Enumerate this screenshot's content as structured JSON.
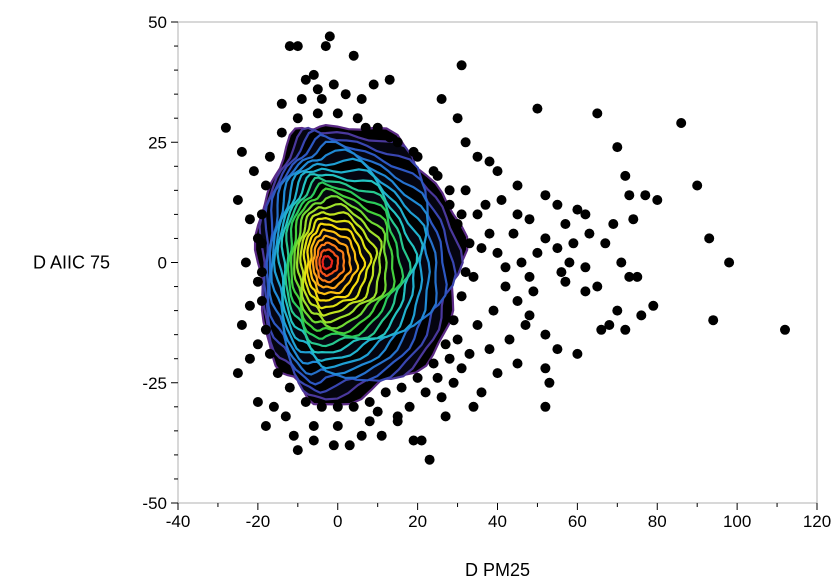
{
  "chart_data": {
    "type": "scatter",
    "title": "",
    "xlabel": "D PM25",
    "ylabel": "D AIIC 75",
    "xlim": [
      -40,
      120
    ],
    "ylim": [
      -50,
      50
    ],
    "x_ticks": [
      -40,
      -20,
      0,
      20,
      40,
      60,
      80,
      100,
      120
    ],
    "y_ticks": [
      -50,
      -25,
      0,
      25,
      50
    ],
    "x_tick_labels": [
      "-40",
      "-20",
      "0",
      "20",
      "40",
      "60",
      "80",
      "100",
      "120"
    ],
    "y_tick_labels": [
      "-50",
      "-25",
      "0",
      "25",
      "50"
    ],
    "grid": false,
    "point_color": "#000000",
    "density_contours": {
      "center": [
        -3,
        0
      ],
      "levels": 22,
      "color_scale": [
        "#5b2a86",
        "#2f4fbf",
        "#1e90d8",
        "#22c3c9",
        "#2ecc40",
        "#a4e22a",
        "#f5e10a",
        "#ff9a1a",
        "#e8241b"
      ]
    },
    "series": [
      {
        "points": [
          [
            -12,
            45
          ],
          [
            -10,
            45
          ],
          [
            -3,
            45
          ],
          [
            -2,
            47
          ],
          [
            4,
            43
          ],
          [
            -8,
            38
          ],
          [
            -6,
            39
          ],
          [
            -5,
            36
          ],
          [
            -1,
            37
          ],
          [
            2,
            35
          ],
          [
            6,
            34
          ],
          [
            9,
            37
          ],
          [
            13,
            38
          ],
          [
            26,
            34
          ],
          [
            31,
            41
          ],
          [
            -28,
            28
          ],
          [
            -24,
            23
          ],
          [
            -21,
            19
          ],
          [
            -25,
            13
          ],
          [
            -22,
            9
          ],
          [
            -20,
            5
          ],
          [
            -23,
            0
          ],
          [
            -20,
            -4
          ],
          [
            -22,
            -9
          ],
          [
            -24,
            -13
          ],
          [
            -20,
            -17
          ],
          [
            -25,
            -23
          ],
          [
            -22,
            -20
          ],
          [
            -20,
            -29
          ],
          [
            -18,
            -34
          ],
          [
            -13,
            -32
          ],
          [
            -11,
            -36
          ],
          [
            -10,
            -39
          ],
          [
            -6,
            -37
          ],
          [
            -1,
            -38
          ],
          [
            3,
            -38
          ],
          [
            8,
            -33
          ],
          [
            11,
            -36
          ],
          [
            15,
            -33
          ],
          [
            19,
            -37
          ],
          [
            21,
            -37
          ],
          [
            23,
            -41
          ],
          [
            15,
            -32
          ],
          [
            30,
            30
          ],
          [
            32,
            25
          ],
          [
            35,
            22
          ],
          [
            38,
            21
          ],
          [
            40,
            19
          ],
          [
            45,
            16
          ],
          [
            50,
            32
          ],
          [
            52,
            14
          ],
          [
            55,
            12
          ],
          [
            57,
            8
          ],
          [
            60,
            11
          ],
          [
            62,
            10
          ],
          [
            65,
            31
          ],
          [
            70,
            24
          ],
          [
            72,
            18
          ],
          [
            73,
            14
          ],
          [
            77,
            14
          ],
          [
            80,
            13
          ],
          [
            45,
            10
          ],
          [
            48,
            9
          ],
          [
            52,
            5
          ],
          [
            55,
            3
          ],
          [
            58,
            0
          ],
          [
            62,
            -1
          ],
          [
            67,
            4
          ],
          [
            71,
            0
          ],
          [
            73,
            -3
          ],
          [
            75,
            -3
          ],
          [
            76,
            -11
          ],
          [
            79,
            -9
          ],
          [
            86,
            29
          ],
          [
            90,
            16
          ],
          [
            93,
            5
          ],
          [
            98,
            0
          ],
          [
            94,
            -12
          ],
          [
            112,
            -14
          ],
          [
            42,
            -5
          ],
          [
            45,
            -8
          ],
          [
            48,
            -11
          ],
          [
            52,
            -15
          ],
          [
            55,
            -18
          ],
          [
            62,
            -6
          ],
          [
            65,
            -5
          ],
          [
            66,
            -14
          ],
          [
            68,
            -13
          ],
          [
            70,
            -10
          ],
          [
            72,
            -14
          ],
          [
            60,
            -19
          ],
          [
            45,
            -21
          ],
          [
            52,
            -22
          ],
          [
            53,
            -25
          ],
          [
            52,
            -30
          ],
          [
            35,
            -13
          ],
          [
            38,
            -18
          ],
          [
            40,
            -23
          ],
          [
            36,
            -27
          ],
          [
            34,
            -30
          ],
          [
            30,
            -16
          ],
          [
            28,
            -20
          ],
          [
            25,
            -24
          ],
          [
            22,
            -27
          ],
          [
            27,
            -32
          ],
          [
            32,
            15
          ],
          [
            35,
            10
          ],
          [
            38,
            6
          ],
          [
            40,
            2
          ],
          [
            42,
            -1
          ],
          [
            36,
            3
          ],
          [
            34,
            -3
          ],
          [
            30,
            8
          ],
          [
            28,
            12
          ],
          [
            25,
            18
          ],
          [
            20,
            22
          ],
          [
            15,
            25
          ],
          [
            10,
            28
          ],
          [
            5,
            30
          ],
          [
            0,
            31
          ],
          [
            -5,
            31
          ],
          [
            -10,
            30
          ],
          [
            -14,
            27
          ],
          [
            -17,
            22
          ],
          [
            -18,
            16
          ],
          [
            -19,
            10
          ],
          [
            -19,
            4
          ],
          [
            -19,
            -2
          ],
          [
            -19,
            -8
          ],
          [
            -18,
            -14
          ],
          [
            -17,
            -19
          ],
          [
            -15,
            -23
          ],
          [
            -12,
            -26
          ],
          [
            -8,
            -29
          ],
          [
            -4,
            -30
          ],
          [
            0,
            -30
          ],
          [
            4,
            -30
          ],
          [
            8,
            -29
          ],
          [
            12,
            -27
          ],
          [
            16,
            -26
          ],
          [
            20,
            -24
          ],
          [
            24,
            -21
          ],
          [
            27,
            -17
          ],
          [
            29,
            -12
          ],
          [
            31,
            -7
          ],
          [
            32,
            -2
          ],
          [
            33,
            4
          ],
          [
            31,
            10
          ],
          [
            28,
            15
          ],
          [
            24,
            19
          ],
          [
            19,
            23
          ],
          [
            13,
            26
          ],
          [
            7,
            28
          ],
          [
            46,
            0
          ],
          [
            48,
            -3
          ],
          [
            50,
            2
          ],
          [
            44,
            6
          ],
          [
            47,
            -13
          ],
          [
            57,
            -4
          ],
          [
            59,
            4
          ],
          [
            63,
            6
          ],
          [
            69,
            8
          ],
          [
            74,
            9
          ],
          [
            56,
            -2
          ],
          [
            49,
            -6
          ],
          [
            43,
            -16
          ],
          [
            39,
            -10
          ],
          [
            37,
            12
          ],
          [
            41,
            13
          ],
          [
            -14,
            33
          ],
          [
            -9,
            34
          ],
          [
            -4,
            34
          ],
          [
            -16,
            -30
          ],
          [
            -6,
            -34
          ],
          [
            0,
            -34
          ],
          [
            6,
            -36
          ],
          [
            10,
            -31
          ],
          [
            18,
            -30
          ],
          [
            26,
            -28
          ],
          [
            29,
            -25
          ],
          [
            31,
            -22
          ],
          [
            33,
            -19
          ]
        ]
      }
    ]
  }
}
